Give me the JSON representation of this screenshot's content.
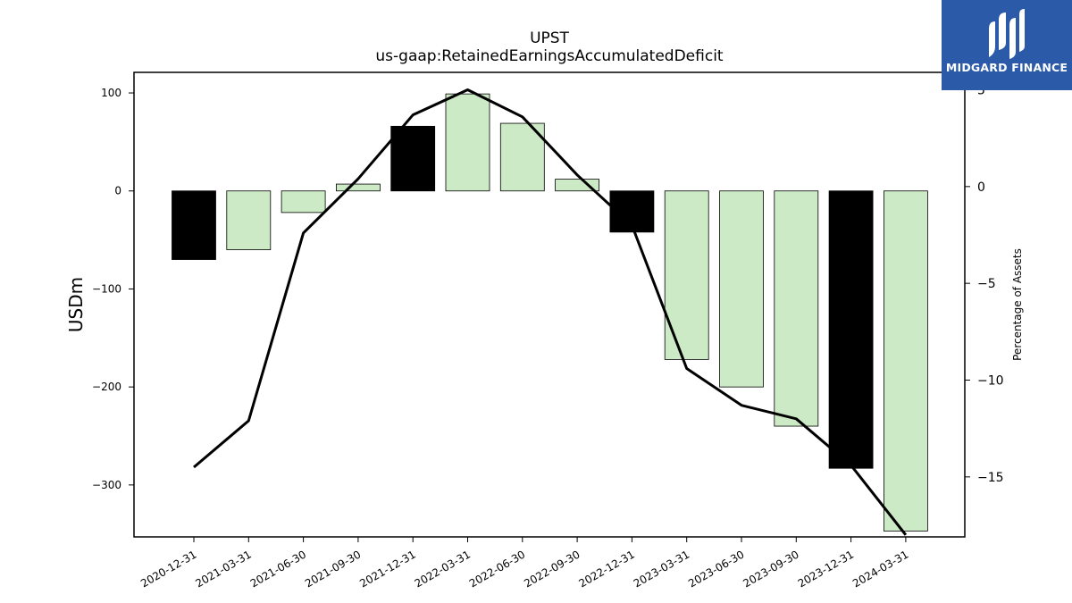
{
  "chart_data": {
    "type": "bar",
    "title": "UPST",
    "subtitle": "us-gaap:RetainedEarningsAccumulatedDeficit",
    "ylabel": "USDm",
    "y2label": "Percentage of Assets",
    "ylim": [
      -353,
      121
    ],
    "y2lim": [
      -18.1,
      5.9
    ],
    "yticks": [
      100,
      0,
      -100,
      -200,
      -300
    ],
    "y2ticks": [
      5,
      0,
      -5,
      -10,
      -15
    ],
    "categories": [
      "2020-12-31",
      "2021-03-31",
      "2021-06-30",
      "2021-09-30",
      "2021-12-31",
      "2022-03-31",
      "2022-06-30",
      "2022-09-30",
      "2022-12-31",
      "2023-03-31",
      "2023-06-30",
      "2023-09-30",
      "2023-12-31",
      "2024-03-31"
    ],
    "series": [
      {
        "type": "bar",
        "axis": "left",
        "values": [
          -70,
          -60,
          -22,
          7,
          66,
          99,
          69,
          12,
          -42,
          -172,
          -200,
          -240,
          -283,
          -347
        ],
        "highlight": [
          true,
          false,
          false,
          false,
          true,
          false,
          false,
          false,
          true,
          false,
          false,
          false,
          true,
          false
        ]
      },
      {
        "type": "line",
        "axis": "right",
        "values": [
          -14.5,
          -12.1,
          -2.4,
          0.4,
          3.7,
          5.0,
          3.6,
          0.6,
          -2.0,
          -9.4,
          -11.3,
          -12.0,
          -14.4,
          -18.0
        ]
      }
    ],
    "colors": {
      "bar": "#cdeac6",
      "bar_highlight": "#000000",
      "line": "#000000",
      "edge": "#000000"
    },
    "grid": false
  },
  "logo": {
    "brand": "MIDGARD FINANCE",
    "icon": "midgard-logo-icon"
  }
}
